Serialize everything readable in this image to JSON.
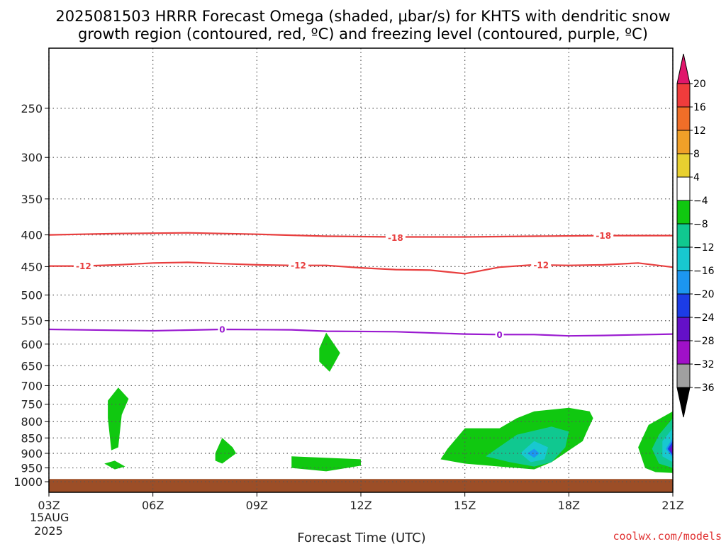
{
  "chart_data": {
    "type": "heatmap",
    "title": [
      "2025081503 HRRR Forecast Omega (shaded, μbar/s) for KHTS with dendritic snow",
      "growth region (contoured, red, ºC) and freezing level (contoured, purple, ºC)"
    ],
    "xlabel": "Forecast Time (UTC)",
    "x_ticks": [
      "03Z",
      "06Z",
      "09Z",
      "12Z",
      "15Z",
      "18Z",
      "21Z"
    ],
    "x_hours": [
      3,
      6,
      9,
      12,
      15,
      18,
      21
    ],
    "x_date_label": [
      "15AUG",
      "2025"
    ],
    "xlim": [
      3,
      21
    ],
    "y_ticks": [
      250,
      300,
      350,
      400,
      450,
      500,
      550,
      600,
      650,
      700,
      750,
      800,
      850,
      900,
      950,
      1000
    ],
    "ylim": [
      200,
      1040
    ],
    "y_scale": "log-pressure",
    "grid": true,
    "surface_level": 990,
    "colorbar": {
      "labels": [
        "20",
        "16",
        "12",
        "8",
        "4",
        "−4",
        "−8",
        "−12",
        "−16",
        "−20",
        "−24",
        "−28",
        "−32",
        "−36"
      ],
      "values": [
        20,
        16,
        12,
        8,
        4,
        -4,
        -8,
        -12,
        -16,
        -20,
        -24,
        -28,
        -32,
        -36
      ],
      "colors": [
        "#e0166b",
        "#f03c3c",
        "#f06e28",
        "#f0a028",
        "#e8d030",
        "#ffffff",
        "#10c810",
        "#10c890",
        "#18c8d0",
        "#1c96f0",
        "#1c3ce6",
        "#6410c8",
        "#a010c8",
        "#a0a0a0",
        "#000000"
      ]
    },
    "contours": [
      {
        "name": "-18",
        "color": "#e83e3e",
        "points": [
          [
            3,
            400
          ],
          [
            5,
            398
          ],
          [
            7,
            397
          ],
          [
            9,
            399
          ],
          [
            11,
            402
          ],
          [
            13,
            403
          ],
          [
            15,
            403
          ],
          [
            17,
            402
          ],
          [
            19,
            401
          ],
          [
            21,
            401
          ]
        ],
        "labels": [
          [
            13,
            404
          ],
          [
            19,
            401
          ]
        ]
      },
      {
        "name": "-12",
        "color": "#e83e3e",
        "points": [
          [
            3,
            449
          ],
          [
            4,
            449
          ],
          [
            5,
            447
          ],
          [
            6,
            444
          ],
          [
            7,
            443
          ],
          [
            8,
            445
          ],
          [
            9,
            447
          ],
          [
            10,
            448
          ],
          [
            11,
            448
          ],
          [
            12,
            452
          ],
          [
            13,
            455
          ],
          [
            14,
            456
          ],
          [
            15,
            462
          ],
          [
            16,
            451
          ],
          [
            17,
            447
          ],
          [
            18,
            448
          ],
          [
            19,
            447
          ],
          [
            20,
            444
          ],
          [
            21,
            451
          ]
        ],
        "labels": [
          [
            4,
            449
          ],
          [
            10.2,
            448
          ],
          [
            17.2,
            447
          ]
        ]
      },
      {
        "name": "0",
        "color": "#9a1ad0",
        "points": [
          [
            3,
            568
          ],
          [
            6,
            571
          ],
          [
            8,
            568
          ],
          [
            10,
            569
          ],
          [
            11,
            572
          ],
          [
            13,
            573
          ],
          [
            15,
            578
          ],
          [
            16,
            579
          ],
          [
            17,
            579
          ],
          [
            18,
            582
          ],
          [
            19,
            581
          ],
          [
            21,
            578
          ]
        ],
        "labels": [
          [
            8,
            568
          ],
          [
            16,
            579
          ]
        ]
      }
    ],
    "omega_regions": [
      {
        "level": -4,
        "color": "#10c810",
        "points": [
          [
            4.7,
            740
          ],
          [
            5.0,
            705
          ],
          [
            5.3,
            735
          ],
          [
            5.1,
            780
          ],
          [
            5.0,
            880
          ],
          [
            4.8,
            890
          ],
          [
            4.7,
            790
          ]
        ]
      },
      {
        "level": -4,
        "color": "#10c810",
        "points": [
          [
            4.6,
            935
          ],
          [
            4.9,
            925
          ],
          [
            5.2,
            945
          ],
          [
            4.9,
            955
          ]
        ]
      },
      {
        "level": -4,
        "color": "#10c810",
        "points": [
          [
            7.8,
            900
          ],
          [
            8.0,
            850
          ],
          [
            8.3,
            880
          ],
          [
            8.4,
            900
          ],
          [
            8.0,
            935
          ],
          [
            7.8,
            925
          ]
        ]
      },
      {
        "level": -4,
        "color": "#10c810",
        "points": [
          [
            10.8,
            610
          ],
          [
            11.0,
            575
          ],
          [
            11.4,
            620
          ],
          [
            11.1,
            665
          ],
          [
            10.8,
            640
          ]
        ]
      },
      {
        "level": -4,
        "color": "#10c810",
        "points": [
          [
            10,
            910
          ],
          [
            12,
            920
          ],
          [
            12,
            942
          ],
          [
            11,
            962
          ],
          [
            10,
            950
          ]
        ]
      },
      {
        "level": -4,
        "color": "#10c810",
        "points": [
          [
            15,
            820
          ],
          [
            16,
            820
          ],
          [
            16.5,
            790
          ],
          [
            17,
            770
          ],
          [
            18,
            760
          ],
          [
            18.6,
            770
          ],
          [
            18.7,
            790
          ],
          [
            18.5,
            835
          ],
          [
            18.4,
            860
          ],
          [
            17.5,
            930
          ],
          [
            17,
            955
          ],
          [
            16,
            945
          ],
          [
            15,
            935
          ],
          [
            14.3,
            920
          ],
          [
            14.5,
            885
          ]
        ]
      },
      {
        "level": -8,
        "color": "#10c890",
        "points": [
          [
            15.6,
            910
          ],
          [
            16.5,
            840
          ],
          [
            17.5,
            815
          ],
          [
            18.0,
            830
          ],
          [
            17.9,
            880
          ],
          [
            17.5,
            930
          ],
          [
            17,
            945
          ],
          [
            16.3,
            930
          ]
        ]
      },
      {
        "level": -12,
        "color": "#18c8d0",
        "points": [
          [
            16.6,
            900
          ],
          [
            17,
            860
          ],
          [
            17.4,
            880
          ],
          [
            17.3,
            920
          ],
          [
            16.9,
            930
          ]
        ]
      },
      {
        "level": -16,
        "color": "#1c96f0",
        "points": [
          [
            16.8,
            900
          ],
          [
            17,
            885
          ],
          [
            17.15,
            900
          ],
          [
            17,
            915
          ]
        ]
      },
      {
        "level": -4,
        "color": "#10c810",
        "points": [
          [
            21,
            770
          ],
          [
            20.3,
            810
          ],
          [
            20.0,
            880
          ],
          [
            20.2,
            950
          ],
          [
            20.5,
            965
          ],
          [
            21,
            968
          ]
        ]
      },
      {
        "level": -8,
        "color": "#10c890",
        "points": [
          [
            21,
            790
          ],
          [
            20.6,
            840
          ],
          [
            20.4,
            885
          ],
          [
            20.6,
            935
          ],
          [
            21,
            950
          ]
        ]
      },
      {
        "level": -12,
        "color": "#18c8d0",
        "points": [
          [
            21,
            820
          ],
          [
            20.7,
            860
          ],
          [
            20.7,
            910
          ],
          [
            21,
            930
          ]
        ]
      },
      {
        "level": -16,
        "color": "#1c96f0",
        "points": [
          [
            21,
            850
          ],
          [
            20.8,
            885
          ],
          [
            21,
            915
          ]
        ]
      },
      {
        "level": -20,
        "color": "#1c3ce6",
        "points": [
          [
            21,
            860
          ],
          [
            20.85,
            885
          ],
          [
            21,
            908
          ]
        ]
      },
      {
        "level": -24,
        "color": "#6410c8",
        "points": [
          [
            21,
            870
          ],
          [
            20.9,
            887
          ],
          [
            21,
            902
          ]
        ]
      }
    ]
  },
  "credit": "coolwx.com/models"
}
